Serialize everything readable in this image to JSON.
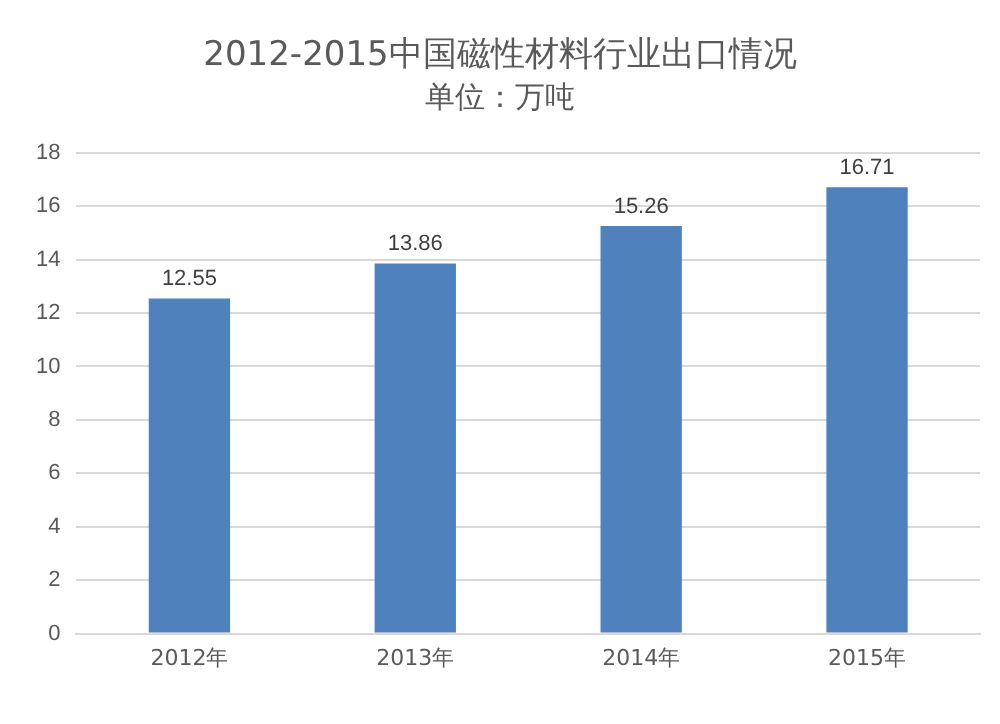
{
  "chart_data": {
    "type": "bar",
    "title": "2012-2015中国磁性材料行业出口情况",
    "subtitle": "单位：万吨",
    "categories": [
      "2012年",
      "2013年",
      "2014年",
      "2015年"
    ],
    "values": [
      12.55,
      13.86,
      15.26,
      16.71
    ],
    "color": "#4f81bd",
    "ylim": [
      0,
      18
    ],
    "yticks": [
      0,
      2,
      4,
      6,
      8,
      10,
      12,
      14,
      16,
      18
    ],
    "grid": "y",
    "data_labels": true
  }
}
